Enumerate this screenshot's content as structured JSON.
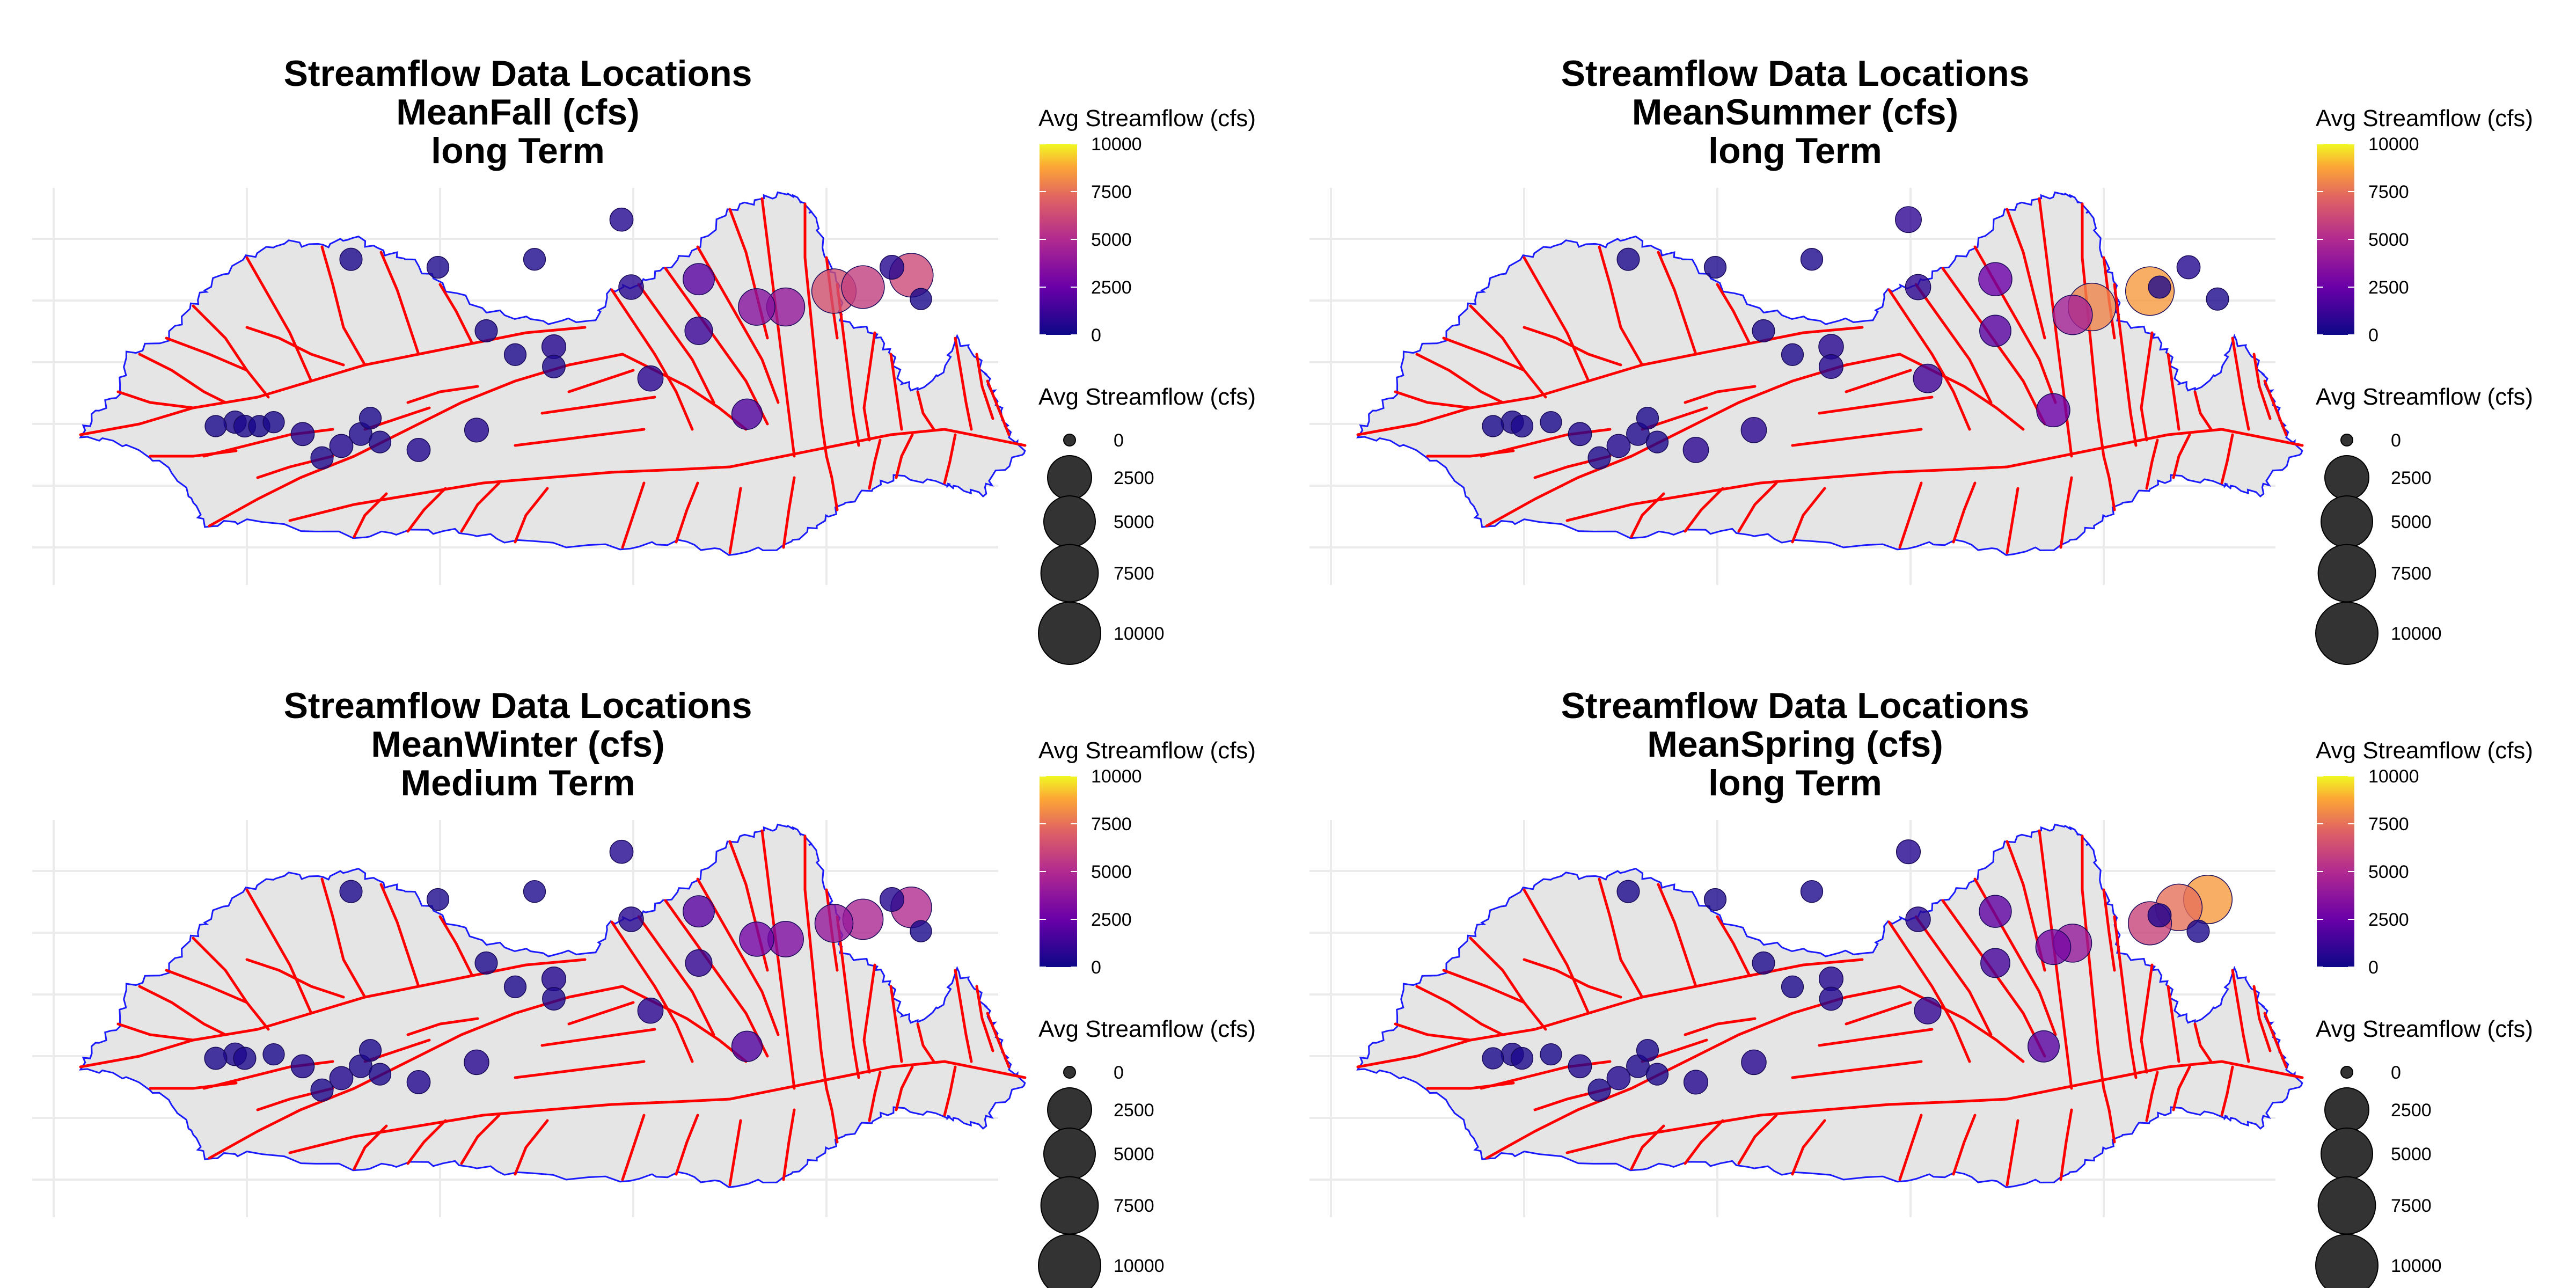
{
  "colors": {
    "basin_fill": "#e5e5e5",
    "basin_outline": "#1a1aff",
    "river": "#ff0000",
    "grid": "#ebebeb",
    "scale_low": "#0d0887",
    "scale_mid1": "#6a00a8",
    "scale_mid2": "#b12a90",
    "scale_mid3": "#e16462",
    "scale_mid4": "#fca636",
    "scale_high": "#f0f921"
  },
  "panels": [
    {
      "title": [
        "Streamflow Data Locations",
        "MeanFall (cfs)",
        "long Term"
      ],
      "legend_color_title": "Avg Streamflow (cfs)",
      "legend_size_title": "Avg Streamflow (cfs)",
      "color_ticks": [
        "10000",
        "7500",
        "5000",
        "2500",
        "0"
      ],
      "size_ticks": [
        "0",
        "2500",
        "5000",
        "7500",
        "10000"
      ],
      "stations": [
        {
          "lon": 0.19,
          "lat": 0.6,
          "value": 300
        },
        {
          "lon": 0.21,
          "lat": 0.59,
          "value": 400
        },
        {
          "lon": 0.22,
          "lat": 0.6,
          "value": 350
        },
        {
          "lon": 0.235,
          "lat": 0.6,
          "value": 300
        },
        {
          "lon": 0.25,
          "lat": 0.59,
          "value": 300
        },
        {
          "lon": 0.28,
          "lat": 0.62,
          "value": 500
        },
        {
          "lon": 0.3,
          "lat": 0.68,
          "value": 400
        },
        {
          "lon": 0.32,
          "lat": 0.65,
          "value": 500
        },
        {
          "lon": 0.34,
          "lat": 0.62,
          "value": 450
        },
        {
          "lon": 0.35,
          "lat": 0.58,
          "value": 350
        },
        {
          "lon": 0.36,
          "lat": 0.64,
          "value": 350
        },
        {
          "lon": 0.4,
          "lat": 0.66,
          "value": 500
        },
        {
          "lon": 0.46,
          "lat": 0.61,
          "value": 600
        },
        {
          "lon": 0.47,
          "lat": 0.36,
          "value": 400
        },
        {
          "lon": 0.5,
          "lat": 0.42,
          "value": 350
        },
        {
          "lon": 0.54,
          "lat": 0.45,
          "value": 450
        },
        {
          "lon": 0.54,
          "lat": 0.4,
          "value": 600
        },
        {
          "lon": 0.52,
          "lat": 0.18,
          "value": 350
        },
        {
          "lon": 0.33,
          "lat": 0.18,
          "value": 400
        },
        {
          "lon": 0.42,
          "lat": 0.2,
          "value": 350
        },
        {
          "lon": 0.64,
          "lat": 0.48,
          "value": 800
        },
        {
          "lon": 0.62,
          "lat": 0.25,
          "value": 700
        },
        {
          "lon": 0.61,
          "lat": 0.08,
          "value": 500
        },
        {
          "lon": 0.69,
          "lat": 0.36,
          "value": 1200
        },
        {
          "lon": 0.69,
          "lat": 0.23,
          "value": 2000
        },
        {
          "lon": 0.74,
          "lat": 0.57,
          "value": 1800
        },
        {
          "lon": 0.75,
          "lat": 0.3,
          "value": 3500
        },
        {
          "lon": 0.78,
          "lat": 0.3,
          "value": 4000
        },
        {
          "lon": 0.83,
          "lat": 0.26,
          "value": 6500
        },
        {
          "lon": 0.86,
          "lat": 0.25,
          "value": 5800
        },
        {
          "lon": 0.89,
          "lat": 0.2,
          "value": 600
        },
        {
          "lon": 0.91,
          "lat": 0.22,
          "value": 6200
        },
        {
          "lon": 0.92,
          "lat": 0.28,
          "value": 300
        }
      ]
    },
    {
      "title": [
        "Streamflow Data Locations",
        "MeanSummer (cfs)",
        "long Term"
      ],
      "legend_color_title": "Avg Streamflow (cfs)",
      "legend_size_title": "Avg Streamflow (cfs)",
      "color_ticks": [
        "10000",
        "7500",
        "5000",
        "2500",
        "0"
      ],
      "size_ticks": [
        "0",
        "2500",
        "5000",
        "7500",
        "10000"
      ],
      "stations": [
        {
          "lon": 0.19,
          "lat": 0.6,
          "value": 300
        },
        {
          "lon": 0.21,
          "lat": 0.59,
          "value": 400
        },
        {
          "lon": 0.22,
          "lat": 0.6,
          "value": 350
        },
        {
          "lon": 0.25,
          "lat": 0.59,
          "value": 300
        },
        {
          "lon": 0.28,
          "lat": 0.62,
          "value": 500
        },
        {
          "lon": 0.3,
          "lat": 0.68,
          "value": 400
        },
        {
          "lon": 0.32,
          "lat": 0.65,
          "value": 500
        },
        {
          "lon": 0.34,
          "lat": 0.62,
          "value": 450
        },
        {
          "lon": 0.35,
          "lat": 0.58,
          "value": 350
        },
        {
          "lon": 0.36,
          "lat": 0.64,
          "value": 350
        },
        {
          "lon": 0.4,
          "lat": 0.66,
          "value": 800
        },
        {
          "lon": 0.46,
          "lat": 0.61,
          "value": 800
        },
        {
          "lon": 0.47,
          "lat": 0.36,
          "value": 400
        },
        {
          "lon": 0.5,
          "lat": 0.42,
          "value": 350
        },
        {
          "lon": 0.54,
          "lat": 0.45,
          "value": 600
        },
        {
          "lon": 0.54,
          "lat": 0.4,
          "value": 700
        },
        {
          "lon": 0.52,
          "lat": 0.18,
          "value": 350
        },
        {
          "lon": 0.33,
          "lat": 0.18,
          "value": 400
        },
        {
          "lon": 0.42,
          "lat": 0.2,
          "value": 350
        },
        {
          "lon": 0.64,
          "lat": 0.48,
          "value": 1400
        },
        {
          "lon": 0.63,
          "lat": 0.25,
          "value": 800
        },
        {
          "lon": 0.62,
          "lat": 0.08,
          "value": 900
        },
        {
          "lon": 0.71,
          "lat": 0.36,
          "value": 2000
        },
        {
          "lon": 0.71,
          "lat": 0.23,
          "value": 2500
        },
        {
          "lon": 0.77,
          "lat": 0.56,
          "value": 2500
        },
        {
          "lon": 0.79,
          "lat": 0.32,
          "value": 4500
        },
        {
          "lon": 0.81,
          "lat": 0.3,
          "value": 8000
        },
        {
          "lon": 0.87,
          "lat": 0.26,
          "value": 8500
        },
        {
          "lon": 0.88,
          "lat": 0.25,
          "value": 400
        },
        {
          "lon": 0.91,
          "lat": 0.2,
          "value": 500
        },
        {
          "lon": 0.94,
          "lat": 0.28,
          "value": 400
        }
      ]
    },
    {
      "title": [
        "Streamflow Data Locations",
        "MeanWinter (cfs)",
        "Medium Term"
      ],
      "legend_color_title": "Avg Streamflow (cfs)",
      "legend_size_title": "Avg Streamflow (cfs)",
      "color_ticks": [
        "10000",
        "7500",
        "5000",
        "2500",
        "0"
      ],
      "size_ticks": [
        "0",
        "2500",
        "5000",
        "7500",
        "10000"
      ],
      "stations": [
        {
          "lon": 0.19,
          "lat": 0.6,
          "value": 400
        },
        {
          "lon": 0.21,
          "lat": 0.59,
          "value": 450
        },
        {
          "lon": 0.22,
          "lat": 0.6,
          "value": 400
        },
        {
          "lon": 0.25,
          "lat": 0.59,
          "value": 300
        },
        {
          "lon": 0.28,
          "lat": 0.62,
          "value": 500
        },
        {
          "lon": 0.3,
          "lat": 0.68,
          "value": 400
        },
        {
          "lon": 0.32,
          "lat": 0.65,
          "value": 500
        },
        {
          "lon": 0.34,
          "lat": 0.62,
          "value": 450
        },
        {
          "lon": 0.35,
          "lat": 0.58,
          "value": 350
        },
        {
          "lon": 0.36,
          "lat": 0.64,
          "value": 350
        },
        {
          "lon": 0.4,
          "lat": 0.66,
          "value": 500
        },
        {
          "lon": 0.46,
          "lat": 0.61,
          "value": 700
        },
        {
          "lon": 0.47,
          "lat": 0.36,
          "value": 400
        },
        {
          "lon": 0.5,
          "lat": 0.42,
          "value": 350
        },
        {
          "lon": 0.54,
          "lat": 0.45,
          "value": 450
        },
        {
          "lon": 0.54,
          "lat": 0.4,
          "value": 600
        },
        {
          "lon": 0.52,
          "lat": 0.18,
          "value": 350
        },
        {
          "lon": 0.33,
          "lat": 0.18,
          "value": 400
        },
        {
          "lon": 0.42,
          "lat": 0.2,
          "value": 350
        },
        {
          "lon": 0.64,
          "lat": 0.48,
          "value": 800
        },
        {
          "lon": 0.62,
          "lat": 0.25,
          "value": 700
        },
        {
          "lon": 0.61,
          "lat": 0.08,
          "value": 500
        },
        {
          "lon": 0.69,
          "lat": 0.36,
          "value": 1000
        },
        {
          "lon": 0.69,
          "lat": 0.23,
          "value": 2000
        },
        {
          "lon": 0.74,
          "lat": 0.57,
          "value": 1800
        },
        {
          "lon": 0.75,
          "lat": 0.3,
          "value": 2800
        },
        {
          "lon": 0.78,
          "lat": 0.3,
          "value": 3200
        },
        {
          "lon": 0.83,
          "lat": 0.26,
          "value": 4000
        },
        {
          "lon": 0.86,
          "lat": 0.25,
          "value": 4800
        },
        {
          "lon": 0.89,
          "lat": 0.2,
          "value": 600
        },
        {
          "lon": 0.91,
          "lat": 0.22,
          "value": 5000
        },
        {
          "lon": 0.92,
          "lat": 0.28,
          "value": 300
        }
      ]
    },
    {
      "title": [
        "Streamflow Data Locations",
        "MeanSpring (cfs)",
        "long Term"
      ],
      "legend_color_title": "Avg Streamflow (cfs)",
      "legend_size_title": "Avg Streamflow (cfs)",
      "color_ticks": [
        "10000",
        "7500",
        "5000",
        "2500",
        "0"
      ],
      "size_ticks": [
        "0",
        "2500",
        "5000",
        "7500",
        "10000"
      ],
      "stations": [
        {
          "lon": 0.19,
          "lat": 0.6,
          "value": 300
        },
        {
          "lon": 0.21,
          "lat": 0.59,
          "value": 400
        },
        {
          "lon": 0.22,
          "lat": 0.6,
          "value": 350
        },
        {
          "lon": 0.25,
          "lat": 0.59,
          "value": 300
        },
        {
          "lon": 0.28,
          "lat": 0.62,
          "value": 500
        },
        {
          "lon": 0.3,
          "lat": 0.68,
          "value": 400
        },
        {
          "lon": 0.32,
          "lat": 0.65,
          "value": 500
        },
        {
          "lon": 0.34,
          "lat": 0.62,
          "value": 450
        },
        {
          "lon": 0.35,
          "lat": 0.58,
          "value": 350
        },
        {
          "lon": 0.36,
          "lat": 0.64,
          "value": 350
        },
        {
          "lon": 0.4,
          "lat": 0.66,
          "value": 600
        },
        {
          "lon": 0.46,
          "lat": 0.61,
          "value": 700
        },
        {
          "lon": 0.47,
          "lat": 0.36,
          "value": 400
        },
        {
          "lon": 0.5,
          "lat": 0.42,
          "value": 350
        },
        {
          "lon": 0.54,
          "lat": 0.45,
          "value": 500
        },
        {
          "lon": 0.54,
          "lat": 0.4,
          "value": 600
        },
        {
          "lon": 0.52,
          "lat": 0.18,
          "value": 350
        },
        {
          "lon": 0.33,
          "lat": 0.18,
          "value": 400
        },
        {
          "lon": 0.42,
          "lat": 0.2,
          "value": 350
        },
        {
          "lon": 0.64,
          "lat": 0.48,
          "value": 1000
        },
        {
          "lon": 0.63,
          "lat": 0.25,
          "value": 700
        },
        {
          "lon": 0.62,
          "lat": 0.08,
          "value": 600
        },
        {
          "lon": 0.71,
          "lat": 0.36,
          "value": 1500
        },
        {
          "lon": 0.71,
          "lat": 0.23,
          "value": 2200
        },
        {
          "lon": 0.76,
          "lat": 0.57,
          "value": 2000
        },
        {
          "lon": 0.77,
          "lat": 0.32,
          "value": 3000
        },
        {
          "lon": 0.79,
          "lat": 0.31,
          "value": 4000
        },
        {
          "lon": 0.87,
          "lat": 0.26,
          "value": 6000
        },
        {
          "lon": 0.88,
          "lat": 0.24,
          "value": 500
        },
        {
          "lon": 0.9,
          "lat": 0.22,
          "value": 7500
        },
        {
          "lon": 0.93,
          "lat": 0.2,
          "value": 8500
        },
        {
          "lon": 0.92,
          "lat": 0.28,
          "value": 400
        }
      ]
    }
  ]
}
